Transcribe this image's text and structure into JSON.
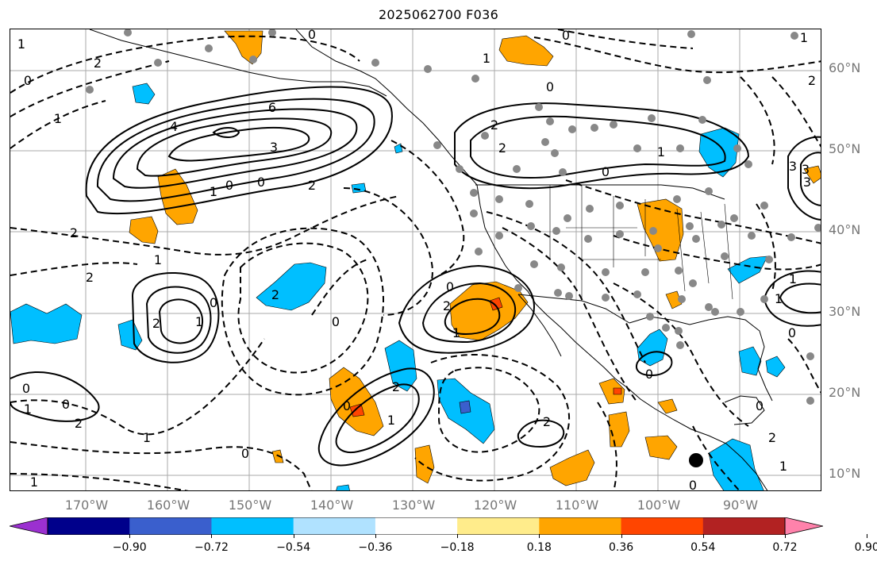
{
  "title": "2025062700 F036",
  "lat_labels": [
    "60°N",
    "50°N",
    "40°N",
    "30°N",
    "20°N",
    "10°N"
  ],
  "lon_labels": [
    "170°W",
    "160°W",
    "150°W",
    "140°W",
    "130°W",
    "120°W",
    "110°W",
    "100°W",
    "90°W"
  ],
  "colorbar": {
    "ticks": [
      "−0.90",
      "−0.72",
      "−0.54",
      "−0.36",
      "−0.18",
      "0.18",
      "0.36",
      "0.54",
      "0.72",
      "0.90"
    ],
    "colors": [
      "#9b30d0",
      "#00008b",
      "#3a5fcd",
      "#00bfff",
      "#b0e2ff",
      "#ffffff",
      "#ffec8b",
      "#ffa500",
      "#ff4500",
      "#b22222",
      "#ff82ab"
    ]
  },
  "contour_labels": [
    "6",
    "4",
    "3",
    "3",
    "1",
    "0",
    "0",
    "2",
    "2",
    "2",
    "1",
    "0",
    "2",
    "1",
    "0",
    "1",
    "0",
    "2",
    "1",
    "0",
    "1",
    "2",
    "0",
    "1",
    "2",
    "0",
    "1",
    "0",
    "2",
    "3",
    "0",
    "1",
    "2",
    "2",
    "0",
    "1",
    "0",
    "1",
    "2",
    "0",
    "1",
    "0",
    "1",
    "2",
    "0",
    "2",
    "1",
    "0",
    "2",
    "0",
    "3",
    "1",
    "1",
    "0"
  ]
}
